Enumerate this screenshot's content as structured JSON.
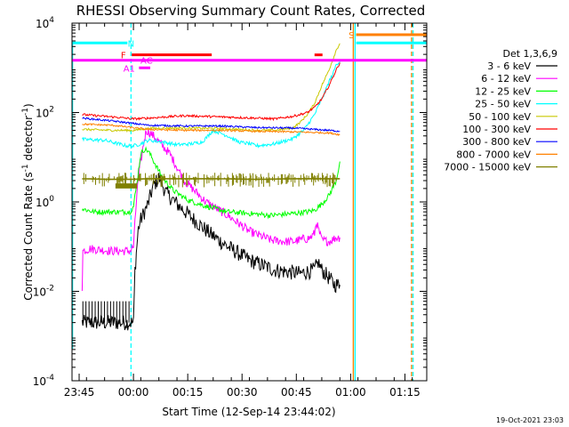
{
  "chart_data": {
    "type": "line",
    "title": "RHESSI Observing Summary Count Rates, Corrected",
    "xlabel": "Start Time (12-Sep-14 23:44:02)",
    "ylabel": "Corrected Count Rate (s",
    "ylabel_exp": "-1",
    "ylabel_tail": " detector",
    "ylabel_tail_exp": "-1",
    "ylabel_close": ")",
    "y_scale": "log",
    "ylim": [
      0.0001,
      10000
    ],
    "xlim": [
      -1.0,
      97.0
    ],
    "x_unit": "minutes after 2014-09-12 23:44:02",
    "x_ticks": [
      {
        "x": 0.97,
        "label": "23:45"
      },
      {
        "x": 15.97,
        "label": "00:00"
      },
      {
        "x": 30.97,
        "label": "00:15"
      },
      {
        "x": 45.97,
        "label": "00:30"
      },
      {
        "x": 60.97,
        "label": "00:45"
      },
      {
        "x": 75.97,
        "label": "01:00"
      },
      {
        "x": 90.97,
        "label": "01:15"
      }
    ],
    "y_ticks": [
      {
        "exp": -4,
        "label": "10",
        "sup": "-4"
      },
      {
        "exp": -2,
        "label": "10",
        "sup": "-2"
      },
      {
        "exp": 0,
        "label": "10",
        "sup": "0"
      },
      {
        "exp": 2,
        "label": "10",
        "sup": "2"
      },
      {
        "exp": 4,
        "label": "10",
        "sup": "4"
      }
    ],
    "legend_title": "Det 1,3,6,9",
    "legend_position": "right",
    "series": [
      {
        "name": "3 - 6 keV",
        "color": "#000000",
        "x": [
          1.8,
          5,
          10,
          15,
          16,
          16.4,
          17.3,
          18,
          20,
          21.5,
          23,
          25,
          28,
          32,
          37,
          42,
          48,
          55,
          62,
          66,
          67,
          68,
          70,
          71.5,
          73
        ],
        "y": [
          0.002,
          0.002,
          0.002,
          0.002,
          0.002,
          0.03,
          0.25,
          0.4,
          0.9,
          2.3,
          3.5,
          1.6,
          0.9,
          0.45,
          0.2,
          0.1,
          0.05,
          0.03,
          0.025,
          0.03,
          0.045,
          0.03,
          0.02,
          0.014,
          0.014
        ]
      },
      {
        "name": "6 - 12 keV",
        "color": "#ff00ff",
        "x": [
          1.8,
          2,
          4,
          10,
          15,
          16,
          17,
          18,
          19,
          19.5,
          20.5,
          21.5,
          23,
          26,
          30,
          36,
          42,
          48,
          54,
          58,
          60,
          62,
          63,
          64,
          65,
          66,
          66.5,
          67,
          68,
          70,
          72,
          73
        ],
        "y": [
          0.012,
          0.08,
          0.09,
          0.08,
          0.08,
          0.1,
          2,
          8,
          25,
          40,
          35,
          30,
          22,
          12,
          3,
          1,
          0.5,
          0.22,
          0.14,
          0.13,
          0.13,
          0.14,
          0.15,
          0.15,
          0.16,
          0.2,
          0.35,
          0.25,
          0.14,
          0.13,
          0.16,
          0.16
        ]
      },
      {
        "name": "12 - 25 keV",
        "color": "#00ff00",
        "x": [
          1.8,
          5,
          10,
          15,
          16,
          17,
          18,
          19,
          20,
          21,
          22,
          24,
          27,
          31,
          36,
          42,
          48,
          54,
          60,
          64,
          66,
          68,
          70,
          72,
          73
        ],
        "y": [
          0.7,
          0.6,
          0.6,
          0.6,
          0.8,
          3,
          12,
          15,
          14,
          10,
          7,
          3.5,
          1.8,
          1.1,
          0.8,
          0.6,
          0.55,
          0.5,
          0.55,
          0.6,
          0.65,
          0.9,
          1.4,
          3,
          8
        ]
      },
      {
        "name": "25 - 50 keV",
        "color": "#00ffff",
        "x": [
          1.8,
          8,
          14,
          16,
          18,
          20,
          24,
          28,
          32,
          35,
          38,
          42,
          45,
          48,
          50,
          55,
          60,
          63,
          66,
          69,
          70,
          71,
          72,
          73
        ],
        "y": [
          25,
          24,
          18,
          18,
          20,
          24,
          22,
          19,
          20,
          22,
          40,
          30,
          22,
          20,
          18,
          20,
          26,
          40,
          90,
          300,
          500,
          700,
          1200,
          1400
        ]
      },
      {
        "name": "50 - 100 keV",
        "color": "#c8c800",
        "x": [
          1.8,
          10,
          16,
          20,
          25,
          30,
          40,
          50,
          55,
          60,
          62,
          64,
          66,
          68,
          70,
          72,
          73
        ],
        "y": [
          42,
          40,
          40,
          44,
          45,
          45,
          44,
          40,
          40,
          45,
          60,
          90,
          160,
          400,
          900,
          2500,
          3500
        ]
      },
      {
        "name": "100 - 300 keV",
        "color": "#ff0000",
        "x": [
          1.8,
          10,
          16,
          20,
          30,
          40,
          50,
          55,
          60,
          64,
          66,
          68,
          70,
          72,
          73
        ],
        "y": [
          90,
          80,
          72,
          75,
          85,
          80,
          75,
          72,
          82,
          100,
          130,
          200,
          400,
          900,
          1300
        ]
      },
      {
        "name": "300 - 800 keV",
        "color": "#0000ff",
        "x": [
          1.8,
          10,
          20,
          30,
          40,
          50,
          60,
          70,
          73
        ],
        "y": [
          75,
          65,
          52,
          50,
          50,
          46,
          45,
          40,
          38
        ]
      },
      {
        "name": "800 - 7000 keV",
        "color": "#ff8000",
        "x": [
          1.8,
          10,
          20,
          30,
          40,
          50,
          60,
          70,
          73
        ],
        "y": [
          55,
          52,
          42,
          40,
          40,
          38,
          37,
          35,
          32
        ]
      },
      {
        "name": "7000 - 15000 keV",
        "color": "#808000",
        "x": [
          1.8,
          10,
          15,
          20,
          30,
          40,
          50,
          60,
          70,
          73
        ],
        "y": [
          3.3,
          3.2,
          3.2,
          3.3,
          3.3,
          3.3,
          3.2,
          3.3,
          3.3,
          3.3
        ]
      }
    ],
    "state_bars": [
      {
        "label": "N",
        "color": "#00ffff",
        "segments": [
          [
            -1,
            14.3
          ],
          [
            77.5,
            97
          ]
        ],
        "y": 3600,
        "label_x": 15.3
      },
      {
        "label": "F",
        "color": "#ff0000",
        "segments": [
          [
            15.5,
            37.6
          ],
          [
            66,
            68.2
          ]
        ],
        "y": 1950,
        "label_x": 13.2
      },
      {
        "label": "S",
        "color": "#ff8000",
        "segments": [
          [
            77.5,
            97
          ]
        ],
        "y": 5500,
        "label_x": 76.2
      },
      {
        "label": "AC",
        "color": "#ff00ff",
        "segments": [
          [
            -1,
            97
          ]
        ],
        "y": 1480,
        "label_x": 19.6
      },
      {
        "label": "A1",
        "color": "#ff00ff",
        "segments": [
          [
            17.5,
            20.6
          ]
        ],
        "y": 1000,
        "label_x": 14.8
      }
    ],
    "markers": [
      {
        "x": 15.3,
        "color": "#00ffff",
        "style": "dashed"
      },
      {
        "x": 76.7,
        "color": "#ff8000",
        "style": "solid"
      },
      {
        "x": 77.2,
        "color": "#00ffff",
        "style": "solid"
      },
      {
        "x": 92.8,
        "color": "#ff8000",
        "style": "dashed"
      },
      {
        "x": 93.2,
        "color": "#00ffff",
        "style": "dashed"
      }
    ],
    "timestamp": "19-Oct-2021 23:03"
  }
}
